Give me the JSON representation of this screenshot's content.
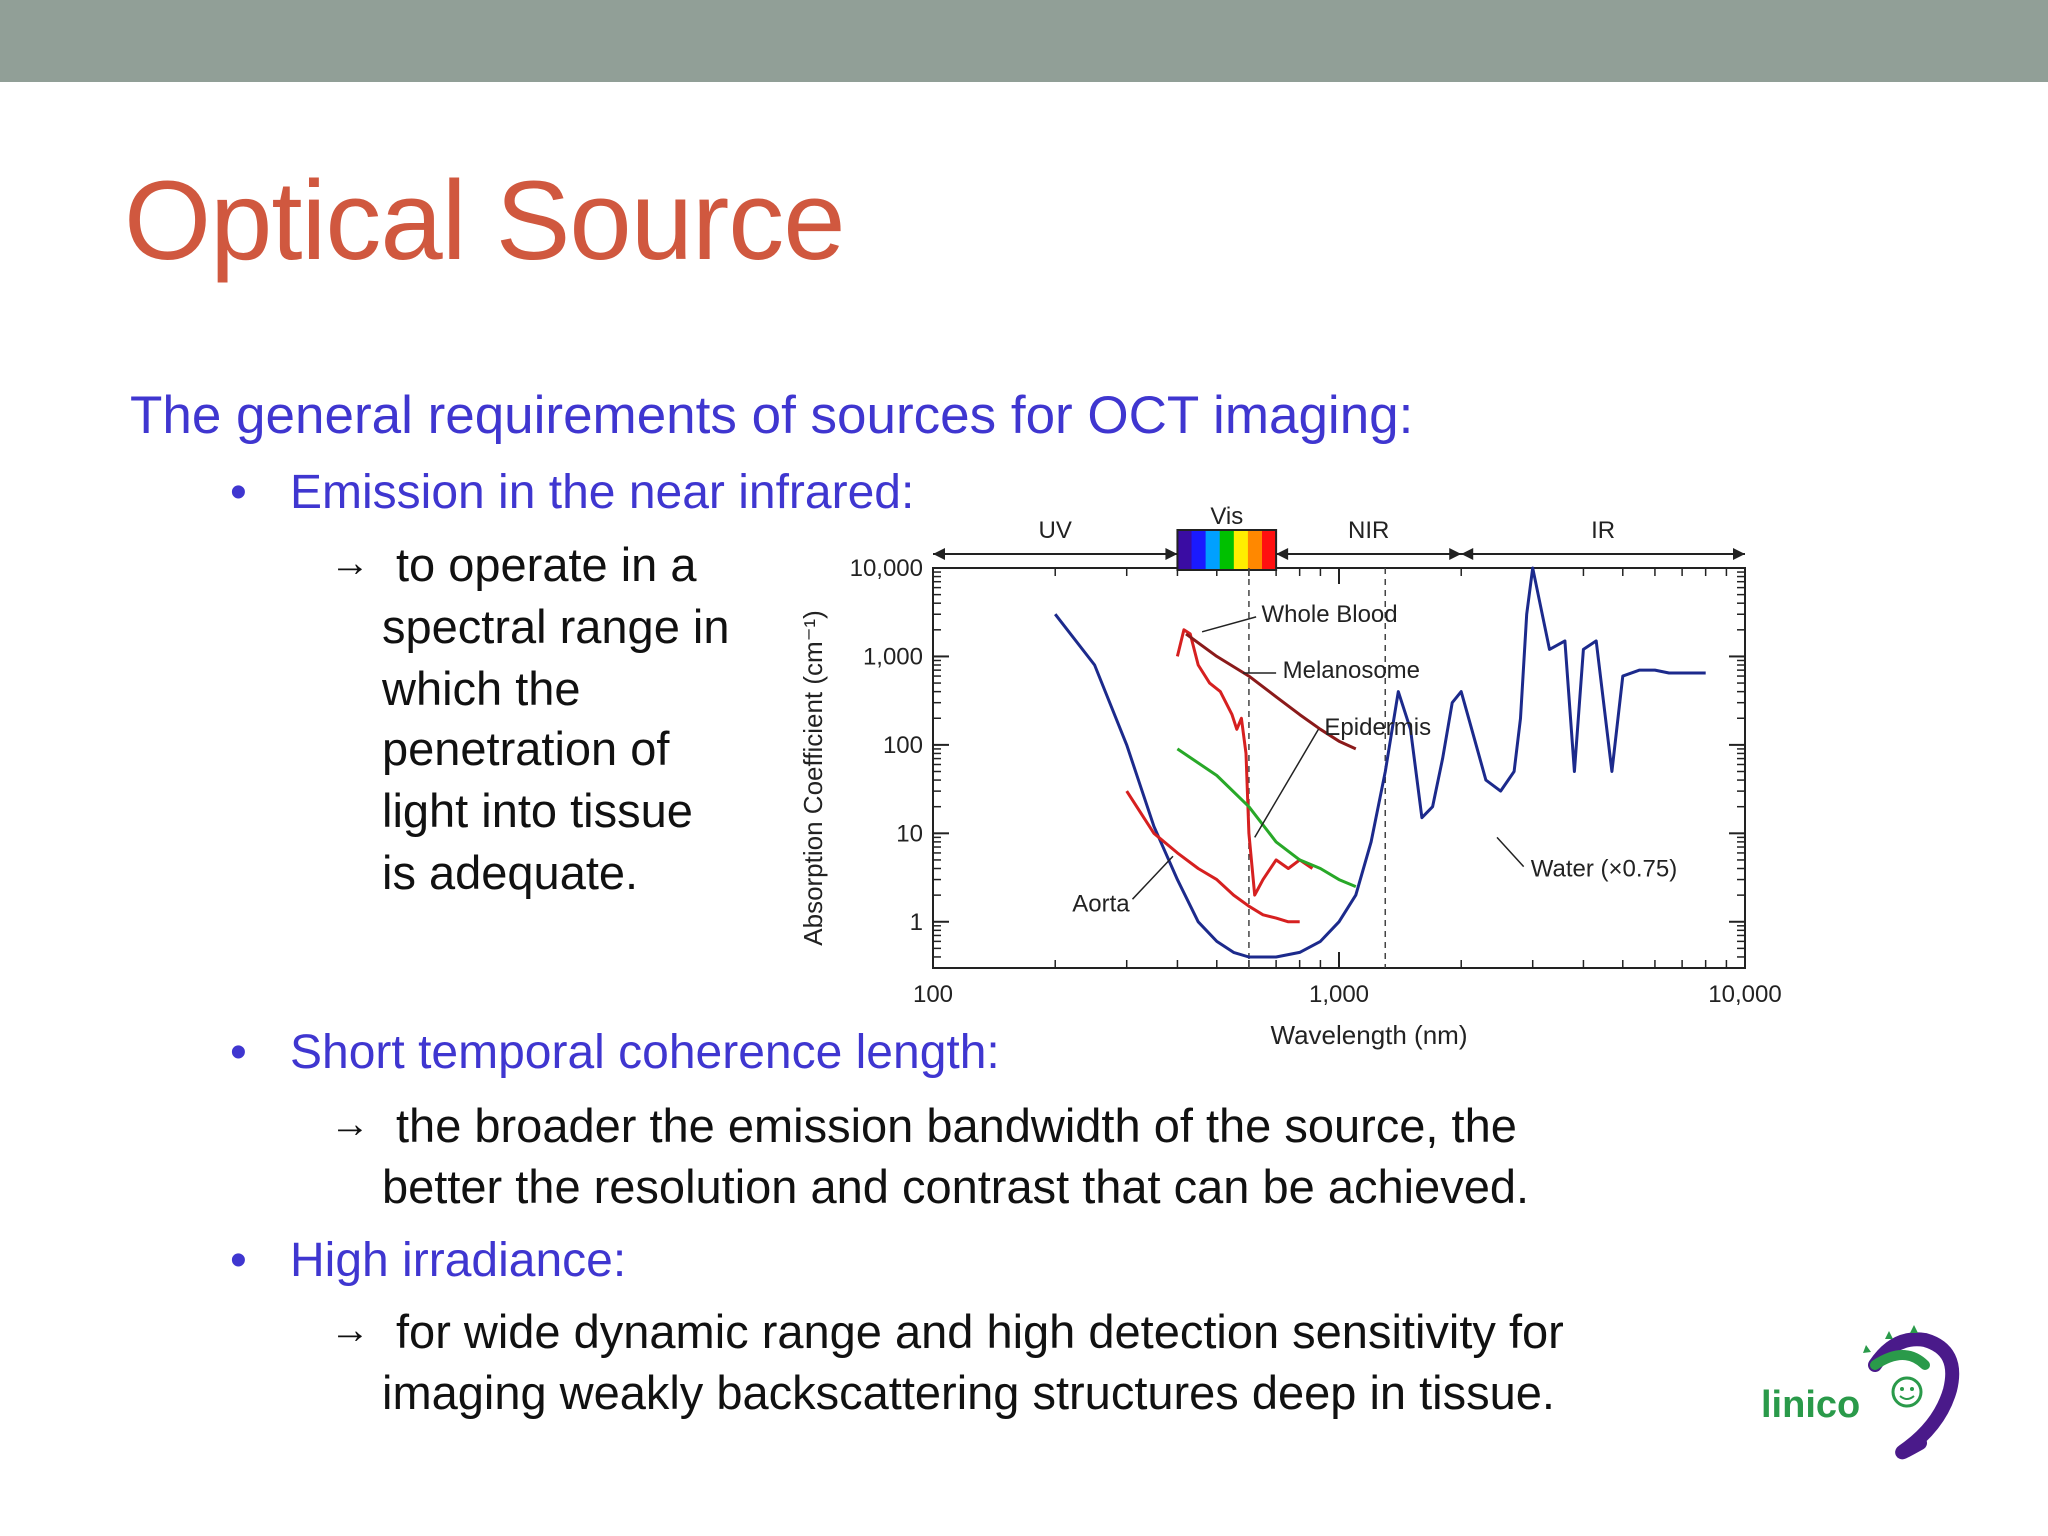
{
  "slide": {
    "title": "Optical Source",
    "subtitle": "The general requirements of sources for OCT imaging:",
    "bullets": [
      {
        "heading": "Emission in the near infrared:",
        "lines": [
          "to operate in a",
          "spectral range in",
          "which the",
          "penetration of",
          "light into tissue",
          "is adequate."
        ]
      },
      {
        "heading": "Short temporal coherence length:",
        "lines": [
          "the broader the emission bandwidth of the source, the",
          "better the resolution and contrast that can be achieved."
        ]
      },
      {
        "heading": "High irradiance:",
        "lines": [
          "for wide dynamic range and high detection sensitivity for",
          "imaging weakly backscattering structures deep in tissue."
        ]
      }
    ],
    "arrow_glyph": "→",
    "bullet_glyph": "•",
    "logo_text": "linico"
  },
  "chart_data": {
    "type": "line",
    "xlabel": "Wavelength (nm)",
    "ylabel": "Absorption Coefficient (cm⁻¹)",
    "x_scale": "log",
    "y_scale": "log",
    "xlim": [
      100,
      10000
    ],
    "ylim": [
      0.3,
      10000
    ],
    "x_ticks": [
      100,
      1000,
      10000
    ],
    "x_tick_labels": [
      "100",
      "1,000",
      "10,000"
    ],
    "y_ticks": [
      1,
      10,
      100,
      1000,
      10000
    ],
    "y_tick_labels": [
      "1",
      "10",
      "100",
      "1,000",
      "10,000"
    ],
    "bands": [
      {
        "label": "UV",
        "from": 100,
        "to": 400
      },
      {
        "label": "Vis",
        "from": 400,
        "to": 700
      },
      {
        "label": "NIR",
        "from": 700,
        "to": 2000
      },
      {
        "label": "IR",
        "from": 2000,
        "to": 10000
      }
    ],
    "vlines": [
      600,
      1300
    ],
    "series": [
      {
        "name": "Water (×0.75)",
        "color": "#1c2a8c",
        "x": [
          200,
          250,
          300,
          350,
          400,
          450,
          500,
          550,
          600,
          700,
          800,
          900,
          1000,
          1100,
          1200,
          1300,
          1400,
          1500,
          1600,
          1700,
          1800,
          1900,
          2000,
          2100,
          2300,
          2500,
          2700,
          2800,
          2900,
          3000,
          3300,
          3600,
          3800,
          4000,
          4300,
          4700,
          5000,
          5500,
          6000,
          6500,
          7000,
          8000
        ],
        "y": [
          3000,
          800,
          100,
          12,
          3,
          1,
          0.6,
          0.45,
          0.4,
          0.4,
          0.45,
          0.6,
          1,
          2,
          8,
          50,
          400,
          150,
          15,
          20,
          70,
          300,
          400,
          180,
          40,
          30,
          50,
          200,
          3000,
          10000,
          1200,
          1500,
          50,
          1200,
          1500,
          50,
          600,
          700,
          700,
          650,
          650,
          650
        ]
      },
      {
        "name": "Whole Blood",
        "color": "#d62020",
        "x": [
          400,
          415,
          430,
          450,
          480,
          510,
          545,
          560,
          575,
          590,
          600,
          620,
          650,
          700,
          750,
          800,
          860
        ],
        "y": [
          1000,
          2000,
          1800,
          800,
          500,
          400,
          220,
          150,
          200,
          80,
          10,
          2,
          3,
          5,
          4,
          5,
          4
        ]
      },
      {
        "name": "Melanosome",
        "color": "#8b1a1a",
        "x": [
          420,
          500,
          600,
          700,
          800,
          900,
          1000,
          1100
        ],
        "y": [
          1800,
          1000,
          600,
          350,
          220,
          150,
          110,
          90
        ]
      },
      {
        "name": "Epidermis",
        "color": "#28a828",
        "x": [
          400,
          500,
          600,
          700,
          800,
          900,
          1000,
          1100
        ],
        "y": [
          90,
          45,
          20,
          8,
          5,
          4,
          3,
          2.5
        ]
      },
      {
        "name": "Aorta",
        "color": "#d62020",
        "x": [
          300,
          350,
          400,
          450,
          500,
          550,
          600,
          650,
          700,
          750,
          800
        ],
        "y": [
          30,
          10,
          6,
          4,
          3,
          2,
          1.5,
          1.2,
          1.1,
          1.0,
          1.0
        ]
      }
    ],
    "annotations": [
      "Whole Blood",
      "Melanosome",
      "Epidermis",
      "Water (×0.75)",
      "Aorta"
    ],
    "grid": false,
    "legend": "none",
    "palette": {
      "spectrum": [
        "#3a0ca3",
        "#1a1aff",
        "#00a0ff",
        "#00c000",
        "#ffee00",
        "#ff8800",
        "#ff1010"
      ]
    }
  },
  "colors": {
    "title": "#d0583f",
    "accent": "#3f36d0",
    "topbar": "#919f97",
    "logo_green": "#2a9a4a",
    "logo_purple": "#4a1a8a"
  }
}
